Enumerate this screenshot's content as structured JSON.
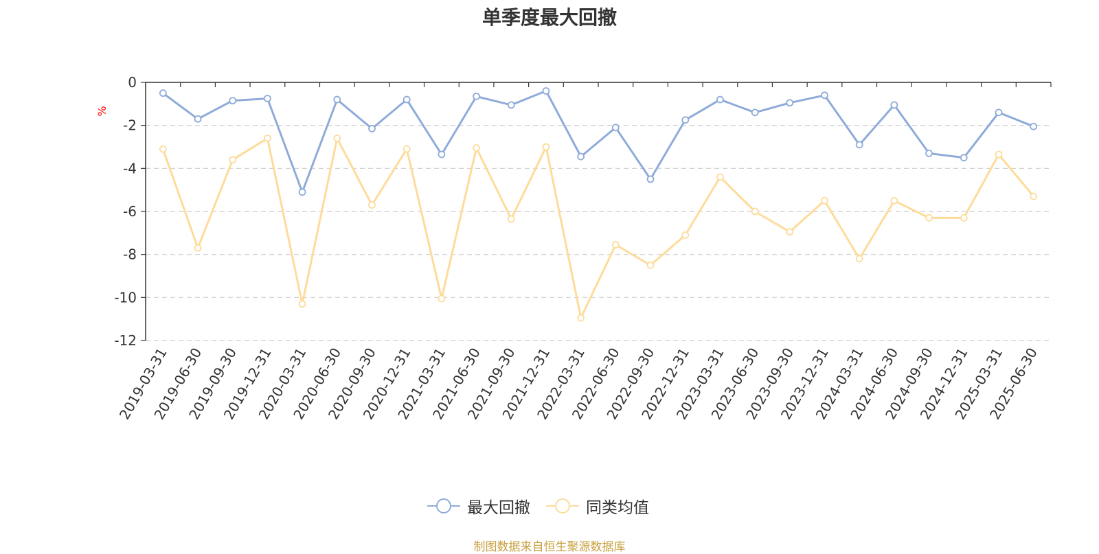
{
  "colors": {
    "series_1": "#8eabd9",
    "series_2": "#fddc9b",
    "axis_unit": "#ff0000",
    "source_note": "#c8a040"
  },
  "source_note": "制图数据来自恒生聚源数据库",
  "chart_data": {
    "type": "line",
    "title": "单季度最大回撤",
    "ylabel": "%",
    "xlabel": "",
    "ylim": [
      -12,
      0
    ],
    "yticks": [
      0,
      -2,
      -4,
      -6,
      -8,
      -10,
      -12
    ],
    "grid": true,
    "legend_position": "bottom-center",
    "categories": [
      "2019-03-31",
      "2019-06-30",
      "2019-09-30",
      "2019-12-31",
      "2020-03-31",
      "2020-06-30",
      "2020-09-30",
      "2020-12-31",
      "2021-03-31",
      "2021-06-30",
      "2021-09-30",
      "2021-12-31",
      "2022-03-31",
      "2022-06-30",
      "2022-09-30",
      "2022-12-31",
      "2023-03-31",
      "2023-06-30",
      "2023-09-30",
      "2023-12-31",
      "2024-03-31",
      "2024-06-30",
      "2024-09-30",
      "2024-12-31",
      "2025-03-31",
      "2025-06-30"
    ],
    "series": [
      {
        "name": "最大回撤",
        "values": [
          -0.5,
          -1.7,
          -0.85,
          -0.75,
          -5.1,
          -0.8,
          -2.15,
          -0.8,
          -3.35,
          -0.65,
          -1.05,
          -0.4,
          -3.45,
          -2.1,
          -4.5,
          -1.75,
          -0.8,
          -1.4,
          -0.95,
          -0.6,
          -2.9,
          -1.05,
          -3.3,
          -3.5,
          -1.4,
          -2.05
        ]
      },
      {
        "name": "同类均值",
        "values": [
          -3.1,
          -7.7,
          -3.6,
          -2.6,
          -10.3,
          -2.6,
          -5.7,
          -3.1,
          -10.05,
          -3.05,
          -6.35,
          -3.0,
          -10.95,
          -7.55,
          -8.5,
          -7.1,
          -4.4,
          -6.0,
          -6.95,
          -5.5,
          -8.2,
          -5.5,
          -6.3,
          -6.3,
          -3.35,
          -5.3
        ]
      }
    ]
  }
}
